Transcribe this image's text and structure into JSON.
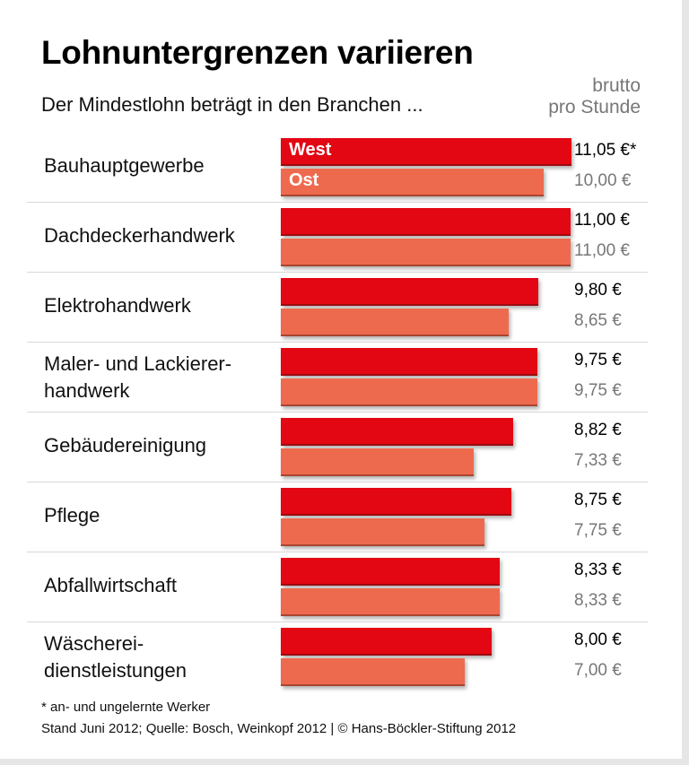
{
  "chart_data": {
    "type": "bar",
    "orientation": "horizontal",
    "title": "Lohnuntergrenzen variieren",
    "subtitle": "Der Mindestlohn beträgt in den Branchen ...",
    "unit_label": [
      "brutto",
      "pro Stunde"
    ],
    "categories": [
      "Bauhauptgewerbe",
      "Dachdeckerhandwerk",
      "Elektrohandwerk",
      "Maler- und Lackierer-\nhandwerk",
      "Gebäudereinigung",
      "Pflege",
      "Abfallwirtschaft",
      "Wäscherei-\ndienstleistungen"
    ],
    "series": [
      {
        "name": "West",
        "color": "#e30613",
        "values": [
          11.05,
          11.0,
          9.8,
          9.75,
          8.82,
          8.75,
          8.33,
          8.0
        ],
        "labels": [
          "11,05 €*",
          "11,00 €",
          "9,80 €",
          "9,75 €",
          "8,82 €",
          "8,75 €",
          "8,33 €",
          "8,00 €"
        ]
      },
      {
        "name": "Ost",
        "color": "#ee6a4e",
        "values": [
          10.0,
          11.0,
          8.65,
          9.75,
          7.33,
          7.75,
          8.33,
          7.0
        ],
        "labels": [
          "10,00 €",
          "11,00 €",
          "8,65 €",
          "9,75 €",
          "7,33 €",
          "7,75 €",
          "8,33 €",
          "7,00 €"
        ]
      }
    ],
    "xlim": [
      0,
      11.05
    ],
    "grid": false,
    "legend": "inside first bars"
  },
  "footnote": "* an- und ungelernte Werker",
  "source": "Stand Juni 2012; Quelle: Bosch, Weinkopf 2012 | © Hans-Böckler-Stiftung 2012"
}
